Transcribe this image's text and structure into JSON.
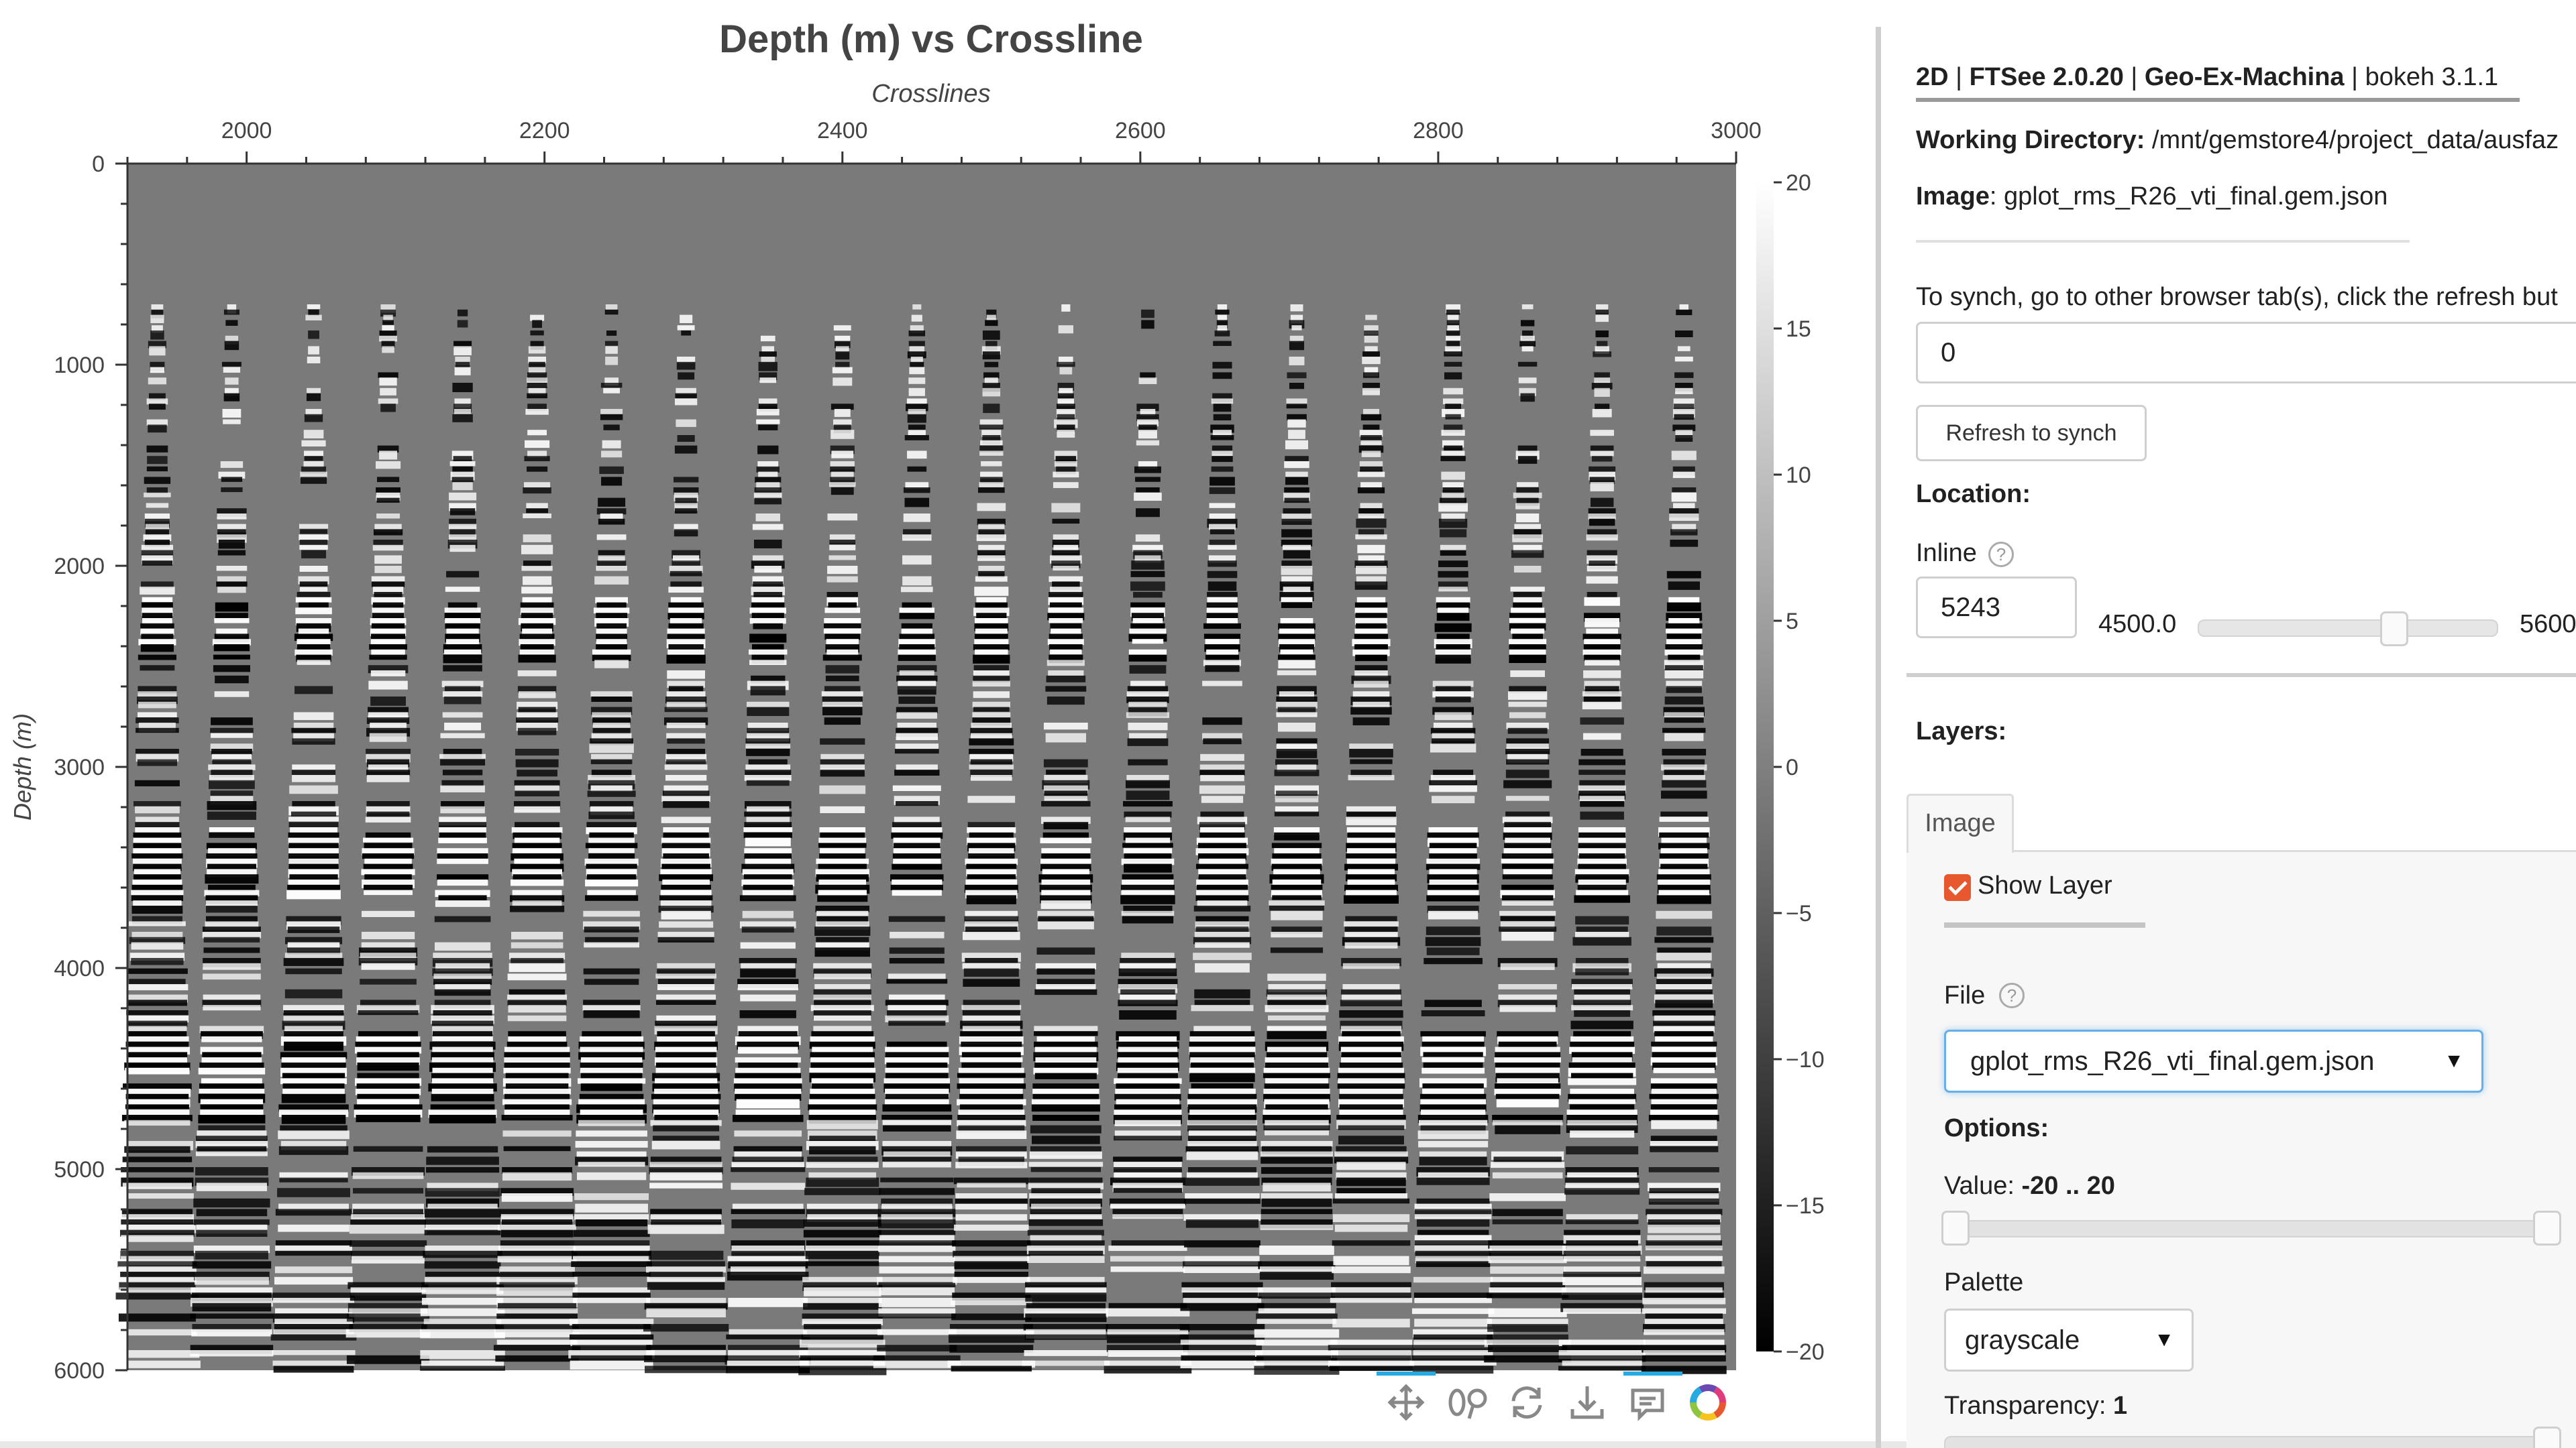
{
  "chart_data": {
    "type": "heatmap",
    "title": "Depth (m) vs Crossline",
    "xlabel": "Crosslines",
    "ylabel": "Depth (m)",
    "x_axis_position": "top",
    "y_reversed": true,
    "xlim": [
      1920,
      3000
    ],
    "ylim": [
      0,
      6000
    ],
    "x_ticks": [
      2000,
      2200,
      2400,
      2600,
      2800,
      3000
    ],
    "y_ticks": [
      0,
      1000,
      2000,
      3000,
      4000,
      5000,
      6000
    ],
    "colorbar": {
      "palette": "grayscale",
      "range": [
        -20,
        20
      ],
      "ticks": [
        20,
        15,
        10,
        5,
        0,
        -5,
        -10,
        -15,
        -20
      ]
    },
    "gather_centers": [
      1940,
      1990,
      2045,
      2095,
      2145,
      2195,
      2245,
      2295,
      2350,
      2400,
      2450,
      2500,
      2550,
      2605,
      2655,
      2705,
      2755,
      2810,
      2860,
      2910,
      2965
    ],
    "background_color": "#7a7a7a"
  },
  "panel": {
    "header": {
      "mode": "2D",
      "sep1": "|",
      "app": "FTSee 2.0.20",
      "sep2": "|",
      "org": "Geo-Ex-Machina",
      "sep3": "|",
      "lib": "bokeh 3.1.1"
    },
    "working_dir": {
      "label": "Working Directory:",
      "value": "/mnt/gemstore4/project_data/ausfaz"
    },
    "image": {
      "label": "Image",
      "value": ": gplot_rms_R26_vti_final.gem.json"
    },
    "synch": {
      "text": "To synch, go to other browser tab(s), click the refresh but",
      "value": "0",
      "button": "Refresh to synch"
    },
    "location": {
      "label": "Location:"
    },
    "inline": {
      "label": "Inline",
      "help": "?",
      "value": "5243",
      "min": "4500.0",
      "max": "5600",
      "fraction": 0.67
    },
    "layers": {
      "label": "Layers:",
      "tab": "Image"
    },
    "show_layer": {
      "label": "Show Layer",
      "checked": true
    },
    "file": {
      "label": "File",
      "help": "?",
      "selected": "gplot_rms_R26_vti_final.gem.json"
    },
    "options": {
      "label": "Options:"
    },
    "value_range": {
      "label": "Value: ",
      "value": "-20 .. 20",
      "min": -20,
      "max": 20
    },
    "palette": {
      "label": "Palette",
      "selected": "grayscale"
    },
    "transparency": {
      "label": "Transparency: ",
      "value": "1"
    }
  },
  "toolbar": {
    "tools": [
      "pan-icon",
      "wheel-zoom-icon",
      "reset-icon",
      "save-icon",
      "hover-icon",
      "bokeh-logo-icon"
    ],
    "accent": "#26aae1"
  },
  "colors": {
    "checkbox": "#e8582e",
    "select_focus": "#66afe9"
  }
}
